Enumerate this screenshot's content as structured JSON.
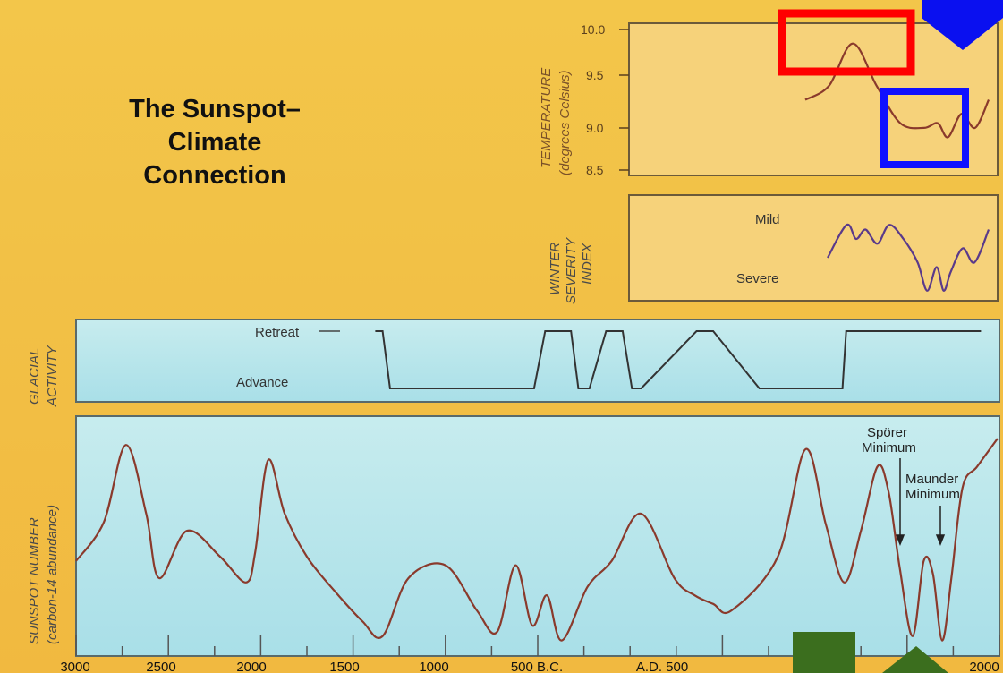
{
  "title_lines": [
    "The Sunspot–",
    "Climate",
    "Connection"
  ],
  "colors": {
    "background_yellow": "#f2c444",
    "panel_cyan": "#bfe8ec",
    "curve": "#8a3a2c",
    "winter_curve": "#5a3a8a",
    "red_box": "#ff0000",
    "blue_box": "#1010ff",
    "blue_arrow": "#0a10f0",
    "green_arrow": "#3b6e1e"
  },
  "panels": {
    "temperature": {
      "ylabel_line1": "TEMPERATURE",
      "ylabel_line2": "(degrees Celsius)",
      "ticks": [
        "10.0",
        "9.5",
        "9.0",
        "8.5"
      ]
    },
    "winter": {
      "ylabel_lines": [
        "WINTER",
        "SEVERITY",
        "INDEX"
      ],
      "mild": "Mild",
      "severe": "Severe"
    },
    "glacial": {
      "ylabel_line1": "GLACIAL",
      "ylabel_line2": "ACTIVITY",
      "retreat": "Retreat",
      "advance": "Advance"
    },
    "sunspot": {
      "ylabel_line1": "SUNSPOT  NUMBER",
      "ylabel_line2": "(carbon-14  abundance)",
      "sporer": [
        "Spörer",
        "Minimum"
      ],
      "maunder": [
        "Maunder",
        "Minimum"
      ]
    }
  },
  "chart_data": {
    "type": "line",
    "xlabel": "",
    "x_ticks": [
      "3000",
      "2500",
      "2000",
      "1500",
      "1000",
      "500 B.C.",
      "A.D. 500",
      "1500",
      "2000"
    ],
    "series": [
      {
        "name": "SUNSPOT NUMBER",
        "x": [
          -3000,
          -2850,
          -2730,
          -2620,
          -2550,
          -2400,
          -2220,
          -2080,
          -2030,
          -1960,
          -1870,
          -1750,
          -1600,
          -1450,
          -1340,
          -1200,
          -1000,
          -830,
          -720,
          -620,
          -530,
          -450,
          -370,
          -230,
          -100,
          60,
          240,
          350,
          450,
          550,
          800,
          950,
          1060,
          1160,
          1250,
          1340,
          1400,
          1460,
          1530,
          1590,
          1640,
          1690,
          1740,
          1800,
          1880,
          1990
        ],
        "values": [
          38,
          56,
          92,
          60,
          30,
          52,
          40,
          28,
          42,
          85,
          60,
          40,
          24,
          10,
          3,
          30,
          36,
          15,
          5,
          36,
          8,
          22,
          1,
          26,
          38,
          60,
          30,
          22,
          18,
          15,
          40,
          90,
          55,
          28,
          52,
          82,
          70,
          35,
          3,
          38,
          32,
          1,
          30,
          72,
          82,
          95
        ]
      },
      {
        "name": "GLACIAL ACTIVITY",
        "x": [
          -1380,
          -1340,
          -1300,
          -1250,
          -520,
          -460,
          -320,
          -280,
          -220,
          -130,
          -40,
          10,
          60,
          360,
          450,
          700,
          1150,
          1170,
          1900
        ],
        "values": [
          1,
          1,
          0,
          0,
          0,
          1,
          1,
          0,
          0,
          1,
          1,
          0,
          0,
          1,
          1,
          0,
          0,
          1,
          1
        ]
      },
      {
        "name": "TEMPERATURE",
        "x": [
          1460,
          1530,
          1600,
          1670,
          1740,
          1810,
          1850,
          1880,
          1920,
          1960,
          2000
        ],
        "values": [
          9.25,
          9.4,
          9.85,
          9.4,
          9.0,
          8.95,
          9.0,
          8.85,
          9.1,
          8.95,
          9.25
        ]
      },
      {
        "name": "WINTER SEVERITY INDEX",
        "x": [
          1300,
          1380,
          1420,
          1460,
          1510,
          1560,
          1620,
          1680,
          1720,
          1760,
          1790,
          1820,
          1870,
          1920,
          1980
        ],
        "values": [
          0.4,
          0.75,
          0.6,
          0.7,
          0.55,
          0.75,
          0.6,
          0.35,
          0.05,
          0.3,
          0.05,
          0.25,
          0.5,
          0.35,
          0.7
        ]
      }
    ],
    "grid": false
  }
}
